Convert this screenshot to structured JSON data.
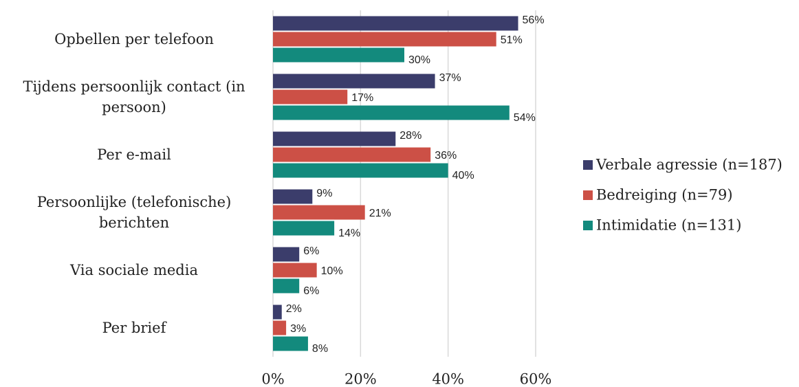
{
  "chart_data": {
    "type": "bar",
    "orientation": "horizontal",
    "categories": [
      "Opbellen per telefoon",
      "Tijdens persoonlijk contact (in persoon)",
      "Per e-mail",
      "Persoonlijke (telefonische) berichten",
      "Via sociale media",
      "Per brief"
    ],
    "series": [
      {
        "name": "Verbale agressie (n=187)",
        "color": "#3b3d6b",
        "values": [
          56,
          37,
          28,
          9,
          6,
          2
        ],
        "value_labels": [
          "56%",
          "37%",
          "28%",
          "9%",
          "6%",
          "2%"
        ]
      },
      {
        "name": "Bedreiging (n=79)",
        "color": "#cc5046",
        "values": [
          51,
          17,
          36,
          21,
          10,
          3
        ],
        "value_labels": [
          "51%",
          "17%",
          "36%",
          "21%",
          "10%",
          "3%"
        ]
      },
      {
        "name": "Intimidatie (n=131)",
        "color": "#138a7d",
        "values": [
          30,
          54,
          40,
          14,
          6,
          8
        ],
        "value_labels": [
          "30%",
          "54%",
          "40%",
          "14%",
          "6%",
          "8%"
        ]
      }
    ],
    "xlim": [
      0,
      70
    ],
    "xticks": [
      {
        "value": 0,
        "label": "0%"
      },
      {
        "value": 20,
        "label": "20%"
      },
      {
        "value": 40,
        "label": "40%"
      },
      {
        "value": 60,
        "label": "60%"
      }
    ],
    "grid": true,
    "legend": "right"
  }
}
